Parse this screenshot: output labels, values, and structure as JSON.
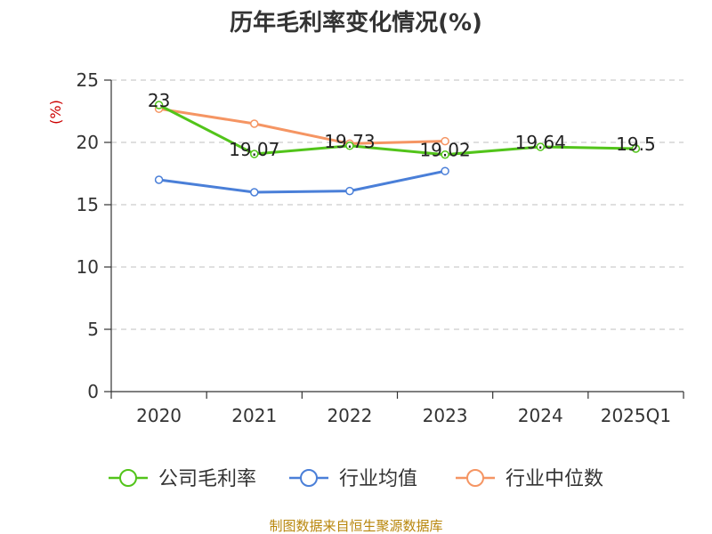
{
  "chart_data": {
    "type": "line",
    "title": "历年毛利率变化情况(%)",
    "ylabel": "(%)",
    "categories": [
      "2020",
      "2021",
      "2022",
      "2023",
      "2024",
      "2025Q1"
    ],
    "ylim": [
      0,
      25
    ],
    "yticks": [
      "0",
      "5",
      "10",
      "15",
      "20",
      "25"
    ],
    "grid": true,
    "legend_position": "bottom",
    "series": [
      {
        "name": "公司毛利率",
        "color": "#52c41a",
        "values": [
          23,
          19.07,
          19.73,
          19.02,
          19.64,
          19.5
        ],
        "labels": [
          "23",
          "19.07",
          "19.73",
          "19.02",
          "19.64",
          "19.5"
        ]
      },
      {
        "name": "行业均值",
        "color": "#4a7fd8",
        "values": [
          17.0,
          16.0,
          16.1,
          17.7,
          null,
          null
        ]
      },
      {
        "name": "行业中位数",
        "color": "#f59563",
        "values": [
          22.7,
          21.5,
          19.9,
          20.1,
          null,
          null
        ]
      }
    ]
  },
  "source": "制图数据来自恒生聚源数据库"
}
